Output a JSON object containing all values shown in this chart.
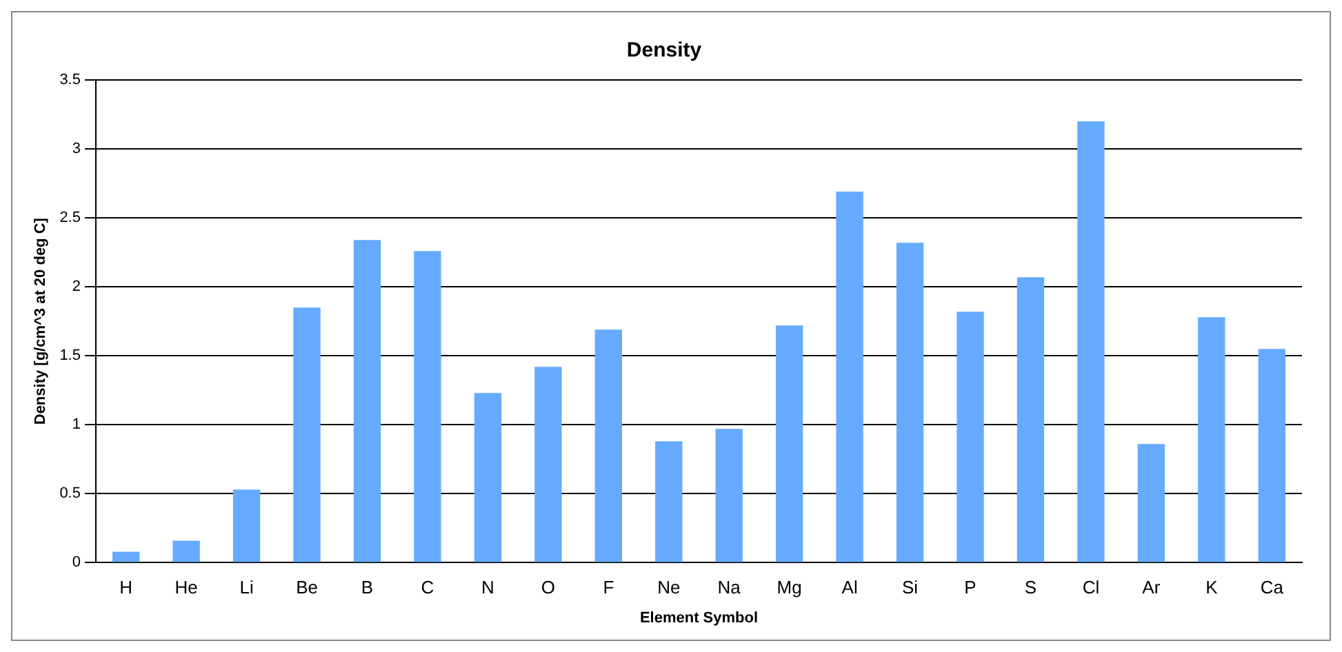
{
  "chart_data": {
    "type": "bar",
    "title": "Density",
    "xlabel": "Element Symbol",
    "ylabel": "Density [g/cm^3 at 20 deg C]",
    "categories": [
      "H",
      "He",
      "Li",
      "Be",
      "B",
      "C",
      "N",
      "O",
      "F",
      "Ne",
      "Na",
      "Mg",
      "Al",
      "Si",
      "P",
      "S",
      "Cl",
      "Ar",
      "K",
      "Ca"
    ],
    "values": [
      0.08,
      0.16,
      0.53,
      1.85,
      2.34,
      2.26,
      1.23,
      1.42,
      1.69,
      0.88,
      0.97,
      1.72,
      2.69,
      2.32,
      1.82,
      2.07,
      3.2,
      0.86,
      1.78,
      1.55
    ],
    "color": "#66aaff",
    "ylim": [
      0,
      3.5
    ],
    "yticks": [
      0,
      0.5,
      1,
      1.5,
      2,
      2.5,
      3,
      3.5
    ],
    "grid": "y",
    "legend": false
  }
}
